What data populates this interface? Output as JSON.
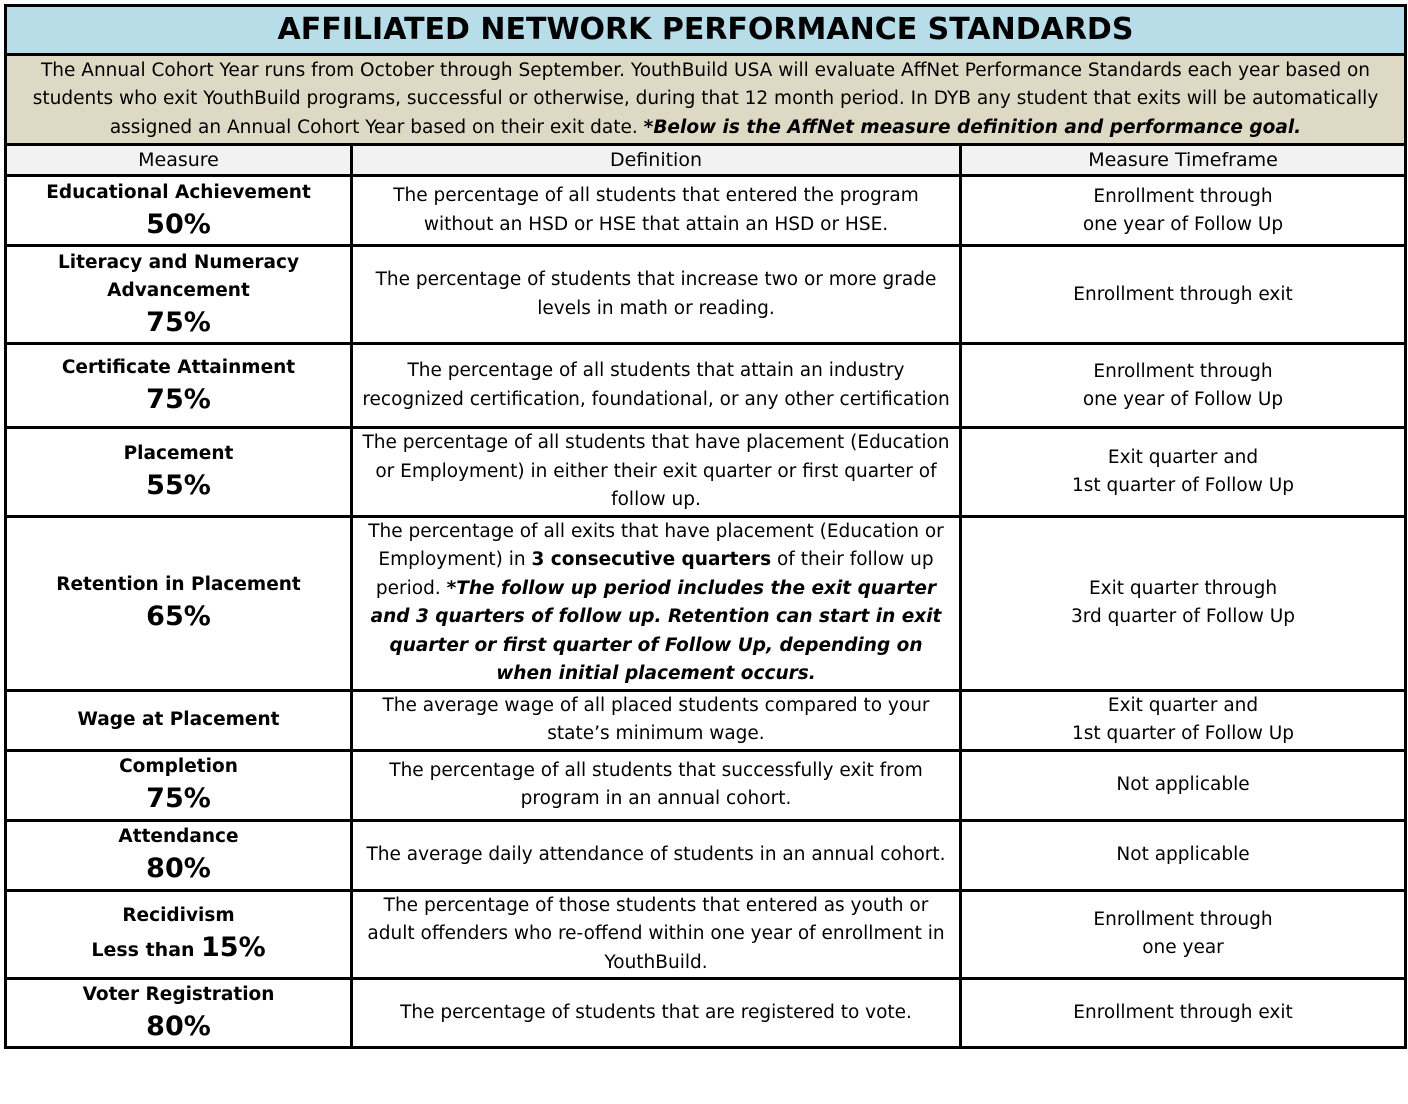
{
  "header": {
    "title": "AFFILIATED NETWORK PERFORMANCE STANDARDS",
    "intro": [
      {
        "text": "The Annual Cohort Year runs from October through September.  YouthBuild USA will evaluate AffNet Performance Standards each year based on students who exit YouthBuild programs, successful or otherwise, during that 12 month period.  In DYB any student that exits will be automatically assigned an Annual Cohort Year based on their exit date. "
      },
      {
        "text": "*Below is the AffNet measure definition and performance goal.",
        "bold": true,
        "italic": true
      }
    ]
  },
  "table": {
    "columns": [
      "Measure",
      "Definition",
      "Measure Timeframe"
    ],
    "rows": [
      {
        "measure": "Educational Achievement",
        "goal": "50%",
        "definition": [
          {
            "text": "The percentage of all students that entered the program without an HSD or HSE that attain an HSD or HSE."
          }
        ],
        "timeframe": [
          "Enrollment through",
          "one year of Follow Up"
        ]
      },
      {
        "measure": "Literacy and Numeracy Advancement",
        "goal": "75%",
        "definition": [
          {
            "text": "The percentage of students that increase two or more grade levels in math or reading."
          }
        ],
        "timeframe": [
          "Enrollment through exit"
        ]
      },
      {
        "measure": "Certificate Attainment",
        "goal": "75%",
        "definition": [
          {
            "text": "The percentage of all students that attain an industry recognized certification, foundational, or any other certification"
          }
        ],
        "timeframe": [
          "Enrollment through",
          "one year of Follow Up"
        ]
      },
      {
        "measure": "Placement",
        "goal": "55%",
        "definition": [
          {
            "text": "The percentage of all students that have placement (Education or Employment) in either their exit quarter or first quarter of follow up."
          }
        ],
        "timeframe": [
          "Exit quarter and",
          "1st quarter of Follow Up"
        ]
      },
      {
        "measure": "Retention in Placement",
        "goal": "65%",
        "definition": [
          {
            "text": "The percentage of all exits that have placement (Education or Employment) in "
          },
          {
            "text": "3 consecutive quarters",
            "bold": true
          },
          {
            "text": " of their follow up period. "
          },
          {
            "text": "*The follow up period includes the exit quarter and 3 quarters of follow up. Retention can start in exit quarter or first quarter of Follow Up, depending on when initial placement occurs.",
            "bold": true,
            "italic": true
          }
        ],
        "timeframe": [
          "Exit quarter through",
          "3rd quarter of Follow Up"
        ]
      },
      {
        "measure": "Wage at Placement",
        "definition": [
          {
            "text": "The average wage of all placed students compared to your state’s minimum wage."
          }
        ],
        "timeframe": [
          "Exit quarter and",
          "1st quarter of Follow Up"
        ]
      },
      {
        "measure": "Completion",
        "goal": "75%",
        "definition": [
          {
            "text": "The percentage of all students that successfully exit from program in an annual cohort."
          }
        ],
        "timeframe": [
          "Not applicable"
        ]
      },
      {
        "measure": "Attendance",
        "goal": "80%",
        "definition": [
          {
            "text": "The average daily attendance of students in an annual cohort."
          }
        ],
        "timeframe": [
          "Not applicable"
        ]
      },
      {
        "measure": "Recidivism",
        "goal_prefix": "Less than",
        "goal": "15%",
        "definition": [
          {
            "text": "The percentage of those students that entered as youth or adult offenders who re-offend within one year of enrollment in YouthBuild."
          }
        ],
        "timeframe": [
          "Enrollment through",
          "one year"
        ]
      },
      {
        "measure": "Voter Registration",
        "goal": "80%",
        "definition": [
          {
            "text": "The percentage of students that are registered to vote."
          }
        ],
        "timeframe": [
          "Enrollment through exit"
        ]
      }
    ]
  }
}
